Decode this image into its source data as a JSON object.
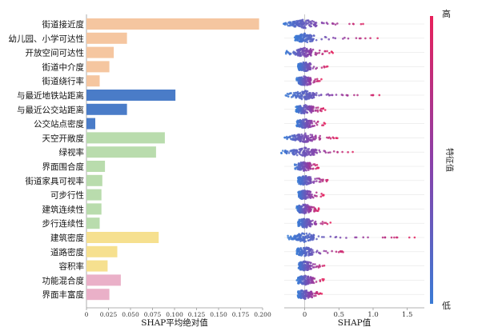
{
  "chart_data": [
    {
      "type": "bar",
      "orientation": "horizontal",
      "title": "",
      "xlabel": "SHAP平均绝对值",
      "ylabel": "",
      "xlim": [
        0,
        0.2
      ],
      "xticks": [
        "0",
        "0.025",
        "0.050",
        "0.075",
        "0.100",
        "0.125",
        "0.150",
        "0.175",
        "0.200"
      ],
      "xtick_values": [
        0,
        0.025,
        0.05,
        0.075,
        0.1,
        0.125,
        0.15,
        0.175,
        0.2
      ],
      "categories": [
        "街道接近度",
        "幼儿园、小学可达性",
        "开放空间可达性",
        "街道中介度",
        "街道绕行率",
        "与最近地铁站距离",
        "与最近公交站距离",
        "公交站点密度",
        "天空开敞度",
        "绿视率",
        "界面围合度",
        "街道家具可视率",
        "可步行性",
        "建筑连续性",
        "步行连续性",
        "建筑密度",
        "道路密度",
        "容积率",
        "功能混合度",
        "界面丰富度"
      ],
      "values": [
        0.196,
        0.046,
        0.031,
        0.026,
        0.015,
        0.101,
        0.046,
        0.01,
        0.089,
        0.079,
        0.021,
        0.018,
        0.017,
        0.017,
        0.015,
        0.082,
        0.035,
        0.024,
        0.039,
        0.026
      ],
      "group_colors": [
        "#f5c6a0",
        "#f5c6a0",
        "#f5c6a0",
        "#f5c6a0",
        "#f5c6a0",
        "#4a7cc8",
        "#4a7cc8",
        "#4a7cc8",
        "#b9dcad",
        "#b9dcad",
        "#b9dcad",
        "#b9dcad",
        "#b9dcad",
        "#b9dcad",
        "#b9dcad",
        "#f6e08f",
        "#f6e08f",
        "#f6e08f",
        "#eab0c8",
        "#eab0c8"
      ]
    },
    {
      "type": "scatter",
      "subtype": "shap-beeswarm",
      "title": "",
      "xlabel": "SHAP值",
      "xlim": [
        -0.3,
        1.75
      ],
      "xticks": [
        "0",
        "0.5",
        "1.0",
        "1.5"
      ],
      "xtick_values": [
        0,
        0.5,
        1.0,
        1.5
      ],
      "features": [
        {
          "name": "街道接近度",
          "min": -0.33,
          "max": 0.93,
          "width": 0.6
        },
        {
          "name": "幼儿园、小学可达性",
          "min": -0.15,
          "max": 1.15,
          "width": 0.45
        },
        {
          "name": "开放空间可达性",
          "min": -0.28,
          "max": 0.42,
          "width": 0.35
        },
        {
          "name": "街道中介度",
          "min": -0.1,
          "max": 0.35,
          "width": 0.3
        },
        {
          "name": "街道绕行率",
          "min": -0.12,
          "max": 0.25,
          "width": 0.3
        },
        {
          "name": "与最近地铁站距离",
          "min": -0.3,
          "max": 1.18,
          "width": 0.5
        },
        {
          "name": "与最近公交站距离",
          "min": -0.12,
          "max": 0.3,
          "width": 0.45
        },
        {
          "name": "公交站点密度",
          "min": -0.12,
          "max": 0.3,
          "width": 0.3
        },
        {
          "name": "天空开敞度",
          "min": -0.3,
          "max": 0.5,
          "width": 0.55
        },
        {
          "name": "绿视率",
          "min": -0.35,
          "max": 0.75,
          "width": 0.6
        },
        {
          "name": "界面围合度",
          "min": -0.15,
          "max": 0.22,
          "width": 0.3
        },
        {
          "name": "街道家具可视率",
          "min": -0.1,
          "max": 0.4,
          "width": 0.3
        },
        {
          "name": "可步行性",
          "min": -0.1,
          "max": 0.28,
          "width": 0.3
        },
        {
          "name": "建筑连续性",
          "min": -0.12,
          "max": 0.22,
          "width": 0.3
        },
        {
          "name": "步行连续性",
          "min": -0.1,
          "max": 0.38,
          "width": 0.3
        },
        {
          "name": "建筑密度",
          "min": -0.25,
          "max": 1.65,
          "width": 0.45
        },
        {
          "name": "道路密度",
          "min": -0.12,
          "max": 0.65,
          "width": 0.4
        },
        {
          "name": "容积率",
          "min": -0.1,
          "max": 0.32,
          "width": 0.3
        },
        {
          "name": "功能混合度",
          "min": -0.1,
          "max": 0.28,
          "width": 0.4
        },
        {
          "name": "界面丰富度",
          "min": -0.1,
          "max": 0.25,
          "width": 0.35
        }
      ],
      "colorbar": {
        "label": "特征值",
        "high": "高",
        "low": "低",
        "high_color": "#e8205a",
        "low_color": "#3a7bd5"
      }
    }
  ]
}
